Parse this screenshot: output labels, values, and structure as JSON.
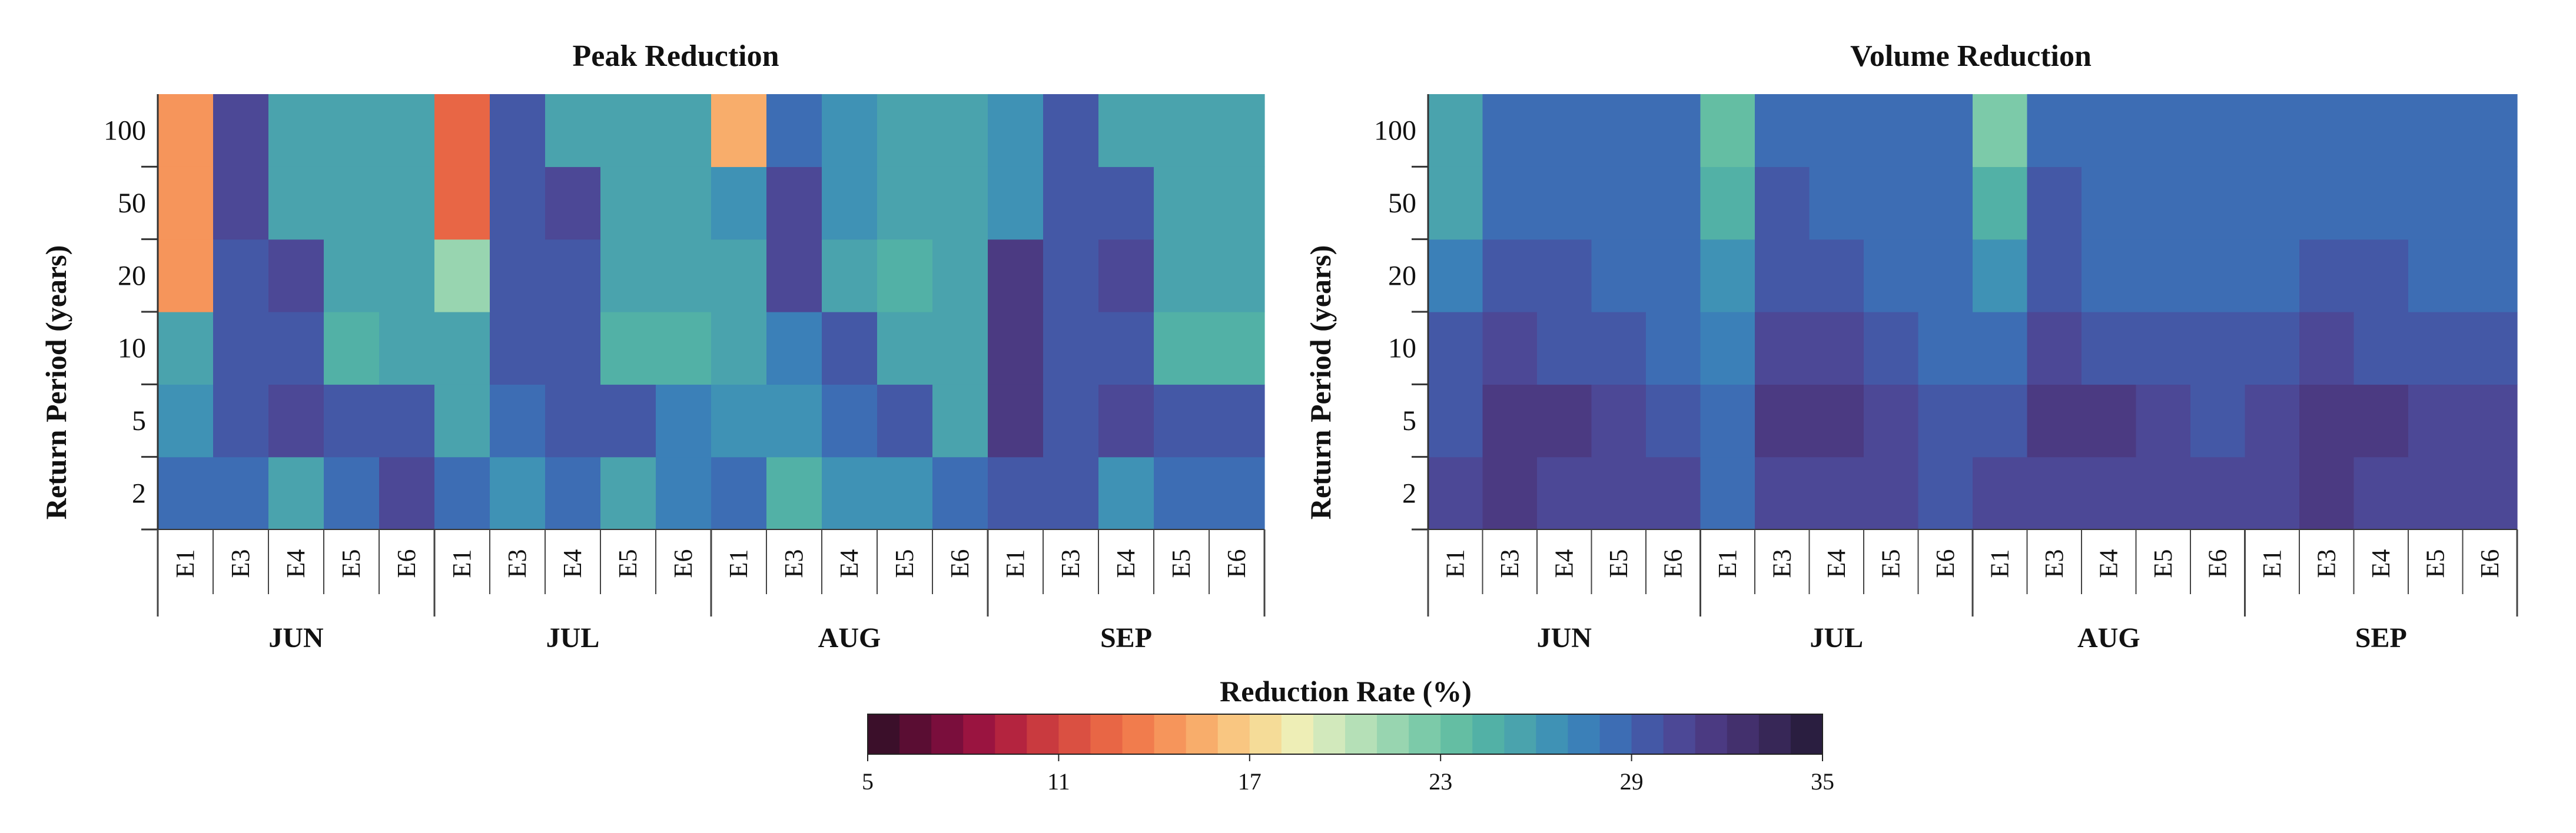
{
  "colorbar": {
    "title": "Reduction Rate (%)",
    "min": 5,
    "max": 35,
    "ticks": [
      5,
      11,
      17,
      23,
      29,
      35
    ],
    "colors": [
      "#3b0f2a",
      "#5a0d33",
      "#7a0e3c",
      "#9a1440",
      "#b4243f",
      "#c93a3f",
      "#da5042",
      "#e86645",
      "#f17c4d",
      "#f6955b",
      "#f8ad6b",
      "#f9c681",
      "#f5dc98",
      "#eeeeb6",
      "#d2e9bc",
      "#b5e0b7",
      "#98d5b0",
      "#7ccaa9",
      "#64bea3",
      "#52b1a6",
      "#4aa3ad",
      "#3f92b5",
      "#3b80b8",
      "#3d6db4",
      "#4458a6",
      "#4c4896",
      "#4b3a82",
      "#43306d",
      "#372757",
      "#2a1e40"
    ]
  },
  "chart_data": [
    {
      "type": "heatmap",
      "title": "Peak Reduction",
      "ylabel": "Return Period (years)",
      "yticks": [
        "100",
        "50",
        "20",
        "10",
        "5",
        "2"
      ],
      "row_labels": [
        "2",
        "5",
        "10",
        "20",
        "50",
        "100"
      ],
      "months": [
        "JUN",
        "JUL",
        "AUG",
        "SEP"
      ],
      "events": [
        "E1",
        "E3",
        "E4",
        "E5",
        "E6",
        "E1",
        "E3",
        "E4",
        "E5",
        "E6",
        "E1",
        "E3",
        "E4",
        "E5",
        "E6",
        "E1",
        "E3",
        "E4",
        "E5",
        "E6"
      ],
      "vmin": 5,
      "vmax": 35,
      "values": [
        [
          28,
          28,
          25,
          28,
          30,
          28,
          26,
          28,
          25,
          27,
          28,
          24,
          26,
          26,
          28,
          29,
          29,
          26,
          28,
          28
        ],
        [
          26,
          29,
          30,
          29,
          29,
          25,
          28,
          29,
          29,
          27,
          26,
          26,
          28,
          29,
          25,
          31,
          29,
          30,
          29,
          29
        ],
        [
          25,
          29,
          29,
          24,
          25,
          25,
          29,
          29,
          24,
          24,
          25,
          27,
          29,
          25,
          25,
          31,
          29,
          29,
          24,
          24
        ],
        [
          14,
          29,
          30,
          25,
          25,
          21,
          29,
          29,
          25,
          25,
          25,
          30,
          25,
          24,
          25,
          31,
          29,
          30,
          25,
          25
        ],
        [
          14,
          30,
          25,
          25,
          25,
          12,
          29,
          30,
          25,
          25,
          26,
          30,
          26,
          25,
          25,
          26,
          29,
          29,
          25,
          25
        ],
        [
          14,
          30,
          25,
          25,
          25,
          12,
          29,
          25,
          25,
          25,
          15,
          28,
          26,
          25,
          25,
          26,
          29,
          25,
          25,
          25
        ]
      ]
    },
    {
      "type": "heatmap",
      "title": "Volume Reduction",
      "ylabel": "Return Period (years)",
      "yticks": [
        "100",
        "50",
        "20",
        "10",
        "5",
        "2"
      ],
      "row_labels": [
        "2",
        "5",
        "10",
        "20",
        "50",
        "100"
      ],
      "months": [
        "JUN",
        "JUL",
        "AUG",
        "SEP"
      ],
      "events": [
        "E1",
        "E3",
        "E4",
        "E5",
        "E6",
        "E1",
        "E3",
        "E4",
        "E5",
        "E6",
        "E1",
        "E3",
        "E4",
        "E5",
        "E6",
        "E1",
        "E3",
        "E4",
        "E5",
        "E6"
      ],
      "vmin": 5,
      "vmax": 35,
      "values": [
        [
          30,
          31,
          30,
          30,
          30,
          28,
          30,
          30,
          30,
          29,
          30,
          30,
          30,
          30,
          30,
          30,
          31,
          30,
          30,
          30
        ],
        [
          29,
          31,
          31,
          30,
          29,
          28,
          31,
          31,
          30,
          29,
          29,
          31,
          31,
          30,
          29,
          30,
          31,
          31,
          30,
          30
        ],
        [
          29,
          30,
          29,
          29,
          28,
          27,
          30,
          30,
          29,
          28,
          28,
          30,
          29,
          29,
          29,
          29,
          30,
          29,
          29,
          29
        ],
        [
          27,
          29,
          29,
          28,
          28,
          26,
          29,
          29,
          28,
          28,
          26,
          29,
          28,
          28,
          28,
          28,
          29,
          29,
          28,
          28
        ],
        [
          25,
          28,
          28,
          28,
          28,
          24,
          29,
          28,
          28,
          28,
          24,
          29,
          28,
          28,
          28,
          28,
          28,
          28,
          28,
          28
        ],
        [
          25,
          28,
          28,
          28,
          28,
          23,
          28,
          28,
          28,
          28,
          22,
          28,
          28,
          28,
          28,
          28,
          28,
          28,
          28,
          28
        ]
      ]
    }
  ]
}
